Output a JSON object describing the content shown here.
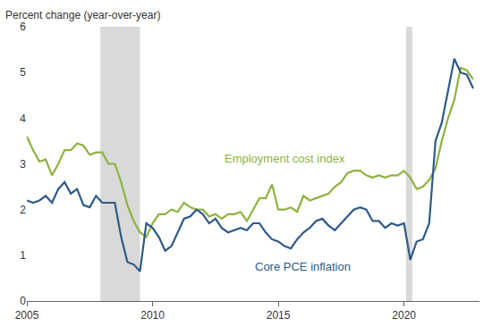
{
  "chart_data": {
    "type": "line",
    "y_label": "Percent change (year-over-year)",
    "x": [
      2005,
      2005.25,
      2005.5,
      2005.75,
      2006,
      2006.25,
      2006.5,
      2006.75,
      2007,
      2007.25,
      2007.5,
      2007.75,
      2008,
      2008.25,
      2008.5,
      2008.75,
      2009,
      2009.25,
      2009.5,
      2009.75,
      2010,
      2010.25,
      2010.5,
      2010.75,
      2011,
      2011.25,
      2011.5,
      2011.75,
      2012,
      2012.25,
      2012.5,
      2012.75,
      2013,
      2013.25,
      2013.5,
      2013.75,
      2014,
      2014.25,
      2014.5,
      2014.75,
      2015,
      2015.25,
      2015.5,
      2015.75,
      2016,
      2016.25,
      2016.5,
      2016.75,
      2017,
      2017.25,
      2017.5,
      2017.75,
      2018,
      2018.25,
      2018.5,
      2018.75,
      2019,
      2019.25,
      2019.5,
      2019.75,
      2020,
      2020.25,
      2020.5,
      2020.75,
      2021,
      2021.25,
      2021.5,
      2021.75,
      2022,
      2022.25,
      2022.5,
      2022.75
    ],
    "series": [
      {
        "name": "Employment cost index",
        "color": "#8db33f",
        "values": [
          3.6,
          3.3,
          3.05,
          3.1,
          2.75,
          3.0,
          3.3,
          3.3,
          3.45,
          3.4,
          3.2,
          3.25,
          3.25,
          3.0,
          3.0,
          2.6,
          2.1,
          1.75,
          1.5,
          1.4,
          1.7,
          1.9,
          1.9,
          2.0,
          1.95,
          2.15,
          2.05,
          2.0,
          2.0,
          1.85,
          1.9,
          1.8,
          1.9,
          1.9,
          1.95,
          1.75,
          2.0,
          2.25,
          2.25,
          2.55,
          2.0,
          2.0,
          2.05,
          1.95,
          2.3,
          2.2,
          2.25,
          2.3,
          2.35,
          2.5,
          2.6,
          2.8,
          2.85,
          2.85,
          2.75,
          2.7,
          2.75,
          2.7,
          2.75,
          2.75,
          2.85,
          2.7,
          2.45,
          2.5,
          2.65,
          2.9,
          3.5,
          4.0,
          4.4,
          5.1,
          5.05,
          4.85
        ]
      },
      {
        "name": "Core PCE inflation",
        "color": "#2e5a87",
        "values": [
          2.2,
          2.15,
          2.2,
          2.3,
          2.15,
          2.45,
          2.6,
          2.35,
          2.45,
          2.1,
          2.05,
          2.3,
          2.15,
          2.15,
          2.15,
          1.4,
          0.85,
          0.8,
          0.65,
          1.7,
          1.6,
          1.4,
          1.1,
          1.2,
          1.5,
          1.8,
          1.85,
          2.0,
          1.9,
          1.7,
          1.8,
          1.6,
          1.5,
          1.55,
          1.6,
          1.55,
          1.7,
          1.7,
          1.5,
          1.35,
          1.3,
          1.2,
          1.15,
          1.35,
          1.5,
          1.6,
          1.75,
          1.8,
          1.65,
          1.55,
          1.7,
          1.85,
          2.0,
          2.05,
          2.0,
          1.75,
          1.75,
          1.6,
          1.7,
          1.65,
          1.7,
          0.9,
          1.3,
          1.35,
          1.7,
          3.5,
          3.9,
          4.6,
          5.3,
          5.0,
          4.95,
          4.65
        ]
      }
    ],
    "shaded_periods": [
      [
        2007.92,
        2009.5
      ],
      [
        2020.08,
        2020.33
      ]
    ],
    "xlim": [
      2005,
      2023
    ],
    "xticks": [
      2005,
      2010,
      2015,
      2020
    ],
    "ylim": [
      0,
      6
    ],
    "yticks": [
      0,
      1,
      2,
      3,
      4,
      5,
      6
    ],
    "grid": false
  }
}
